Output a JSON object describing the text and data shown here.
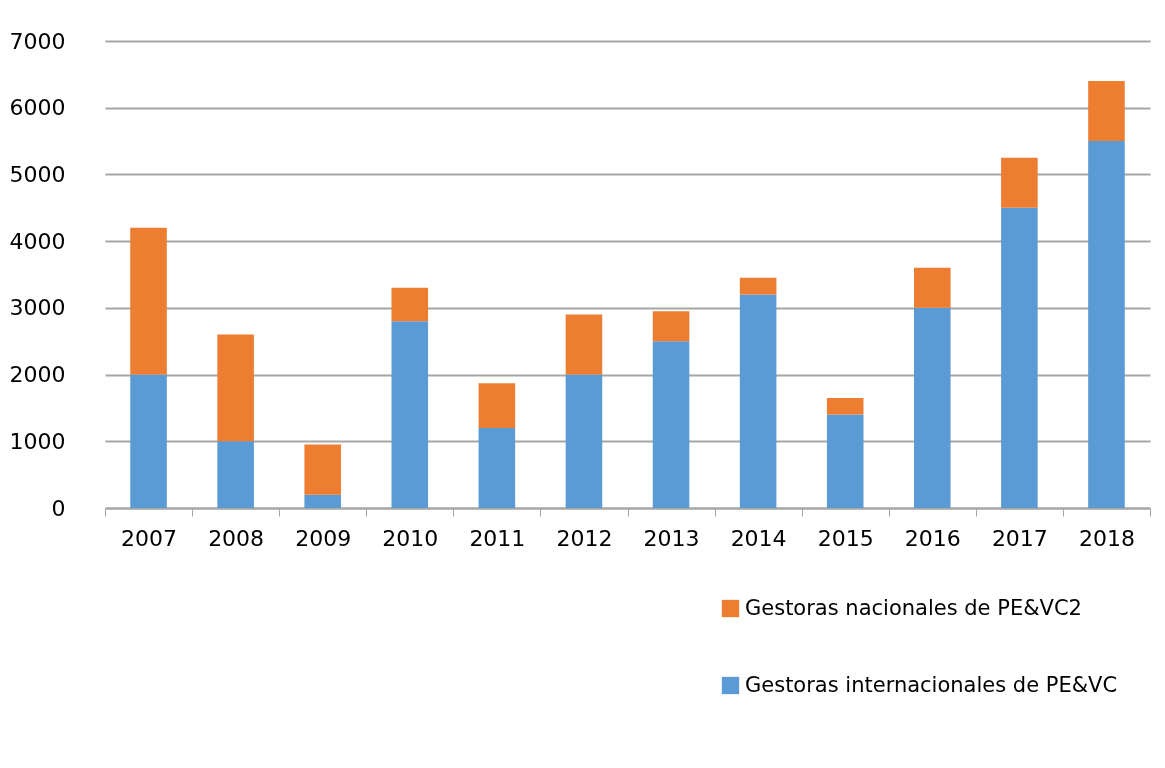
{
  "chart_data": {
    "type": "bar",
    "stacked": true,
    "categories": [
      "2007",
      "2008",
      "2009",
      "2010",
      "2011",
      "2012",
      "2013",
      "2014",
      "2015",
      "2016",
      "2017",
      "2018"
    ],
    "series": [
      {
        "name": "Gestoras internacionales de PE&VC",
        "color": "#5b9bd5",
        "values": [
          2000,
          1000,
          200,
          2800,
          1200,
          2000,
          2500,
          3200,
          1400,
          3000,
          4500,
          5500
        ]
      },
      {
        "name": "Gestoras nacionales de PE&VC2",
        "color": "#ed7d31",
        "values": [
          2200,
          1600,
          750,
          500,
          670,
          900,
          450,
          250,
          250,
          600,
          750,
          900
        ]
      }
    ],
    "ylim": [
      0,
      7000
    ],
    "yticks": [
      0,
      1000,
      2000,
      3000,
      4000,
      5000,
      6000,
      7000
    ],
    "grid": "y",
    "legend": "bottom right"
  }
}
